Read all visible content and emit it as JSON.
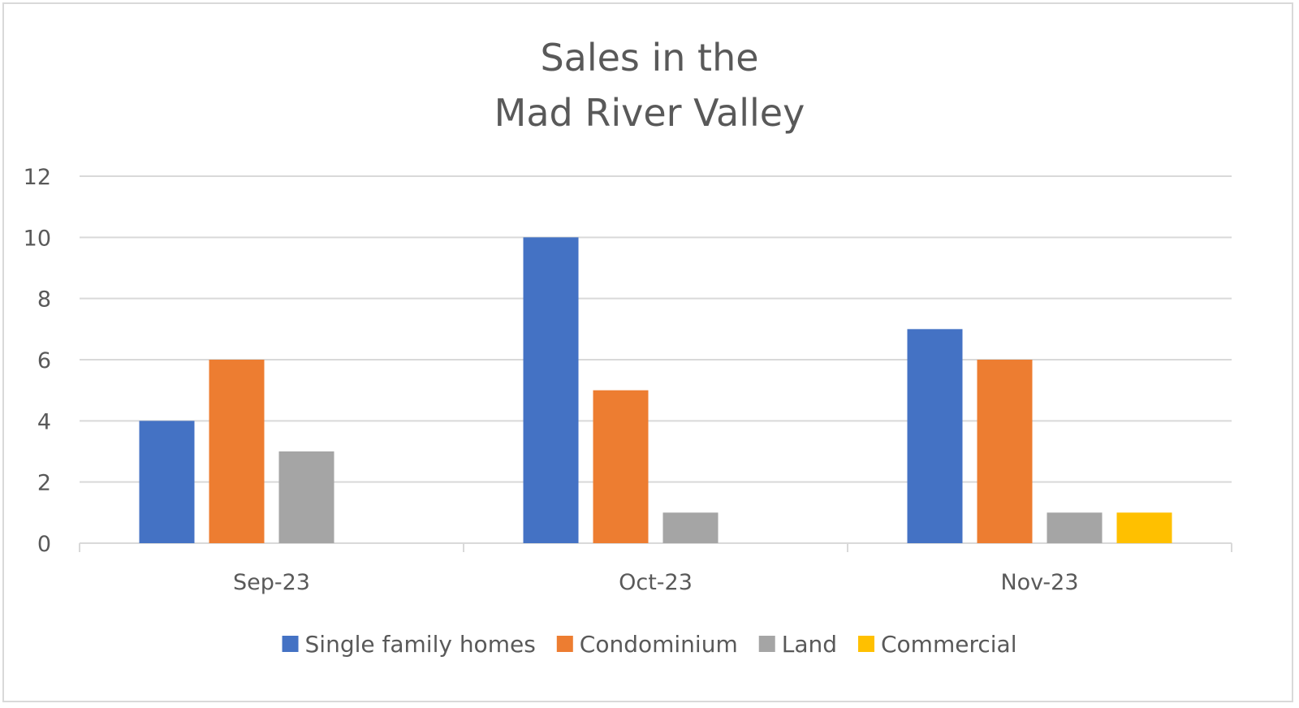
{
  "chart_data": {
    "type": "bar",
    "title": [
      "Sales in the",
      "Mad River Valley"
    ],
    "categories": [
      "Sep-23",
      "Oct-23",
      "Nov-23"
    ],
    "series": [
      {
        "name": "Single family homes",
        "values": [
          4,
          10,
          7
        ],
        "color": "#4472c4"
      },
      {
        "name": "Condominium",
        "values": [
          6,
          5,
          6
        ],
        "color": "#ed7d31"
      },
      {
        "name": "Land",
        "values": [
          3,
          1,
          1
        ],
        "color": "#a5a5a5"
      },
      {
        "name": "Commercial",
        "values": [
          0,
          0,
          1
        ],
        "color": "#ffc000"
      }
    ],
    "ylim": [
      0,
      12
    ],
    "yticks": [
      "0",
      "2",
      "4",
      "6",
      "8",
      "10",
      "12"
    ],
    "grid": true,
    "legend_position": "bottom"
  }
}
